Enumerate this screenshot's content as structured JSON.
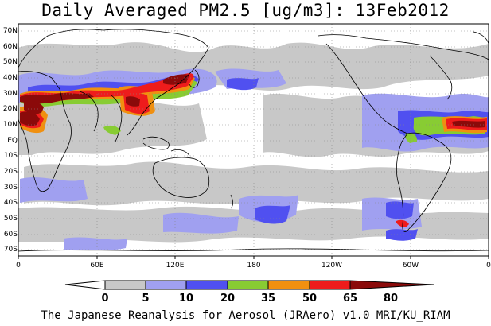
{
  "title": "Daily Averaged PM2.5 [ug/m3]: 13Feb2012",
  "footer": "The Japanese Reanalysis for Aerosol (JRAero) v1.0 MRI/KU_RIAM",
  "lat_labels": [
    "70N",
    "60N",
    "50N",
    "40N",
    "30N",
    "20N",
    "10N",
    "EQ",
    "10S",
    "20S",
    "30S",
    "40S",
    "50S",
    "60S",
    "70S"
  ],
  "lon_labels": [
    "0",
    "60E",
    "120E",
    "180",
    "120W",
    "60W",
    "0"
  ],
  "colorbar": {
    "labels": [
      "0",
      "5",
      "10",
      "20",
      "35",
      "50",
      "65",
      "80"
    ],
    "colors": [
      "#ffffff",
      "#c8c8c8",
      "#a0a0f0",
      "#5050f0",
      "#88cc33",
      "#f09010",
      "#ee1c1c",
      "#8b0a0a"
    ]
  },
  "legend_items": [
    {
      "range": "0-5",
      "color": "#ffffff"
    },
    {
      "range": "5-10",
      "color": "#c8c8c8"
    },
    {
      "range": "10-20",
      "color": "#a0a0f0"
    },
    {
      "range": "20-35",
      "color": "#5050f0"
    },
    {
      "range": "35-50",
      "color": "#88cc33"
    },
    {
      "range": "50-65",
      "color": "#f09010"
    },
    {
      "range": "65-80",
      "color": "#ee1c1c"
    },
    {
      "range": ">80",
      "color": "#8b0a0a"
    }
  ]
}
